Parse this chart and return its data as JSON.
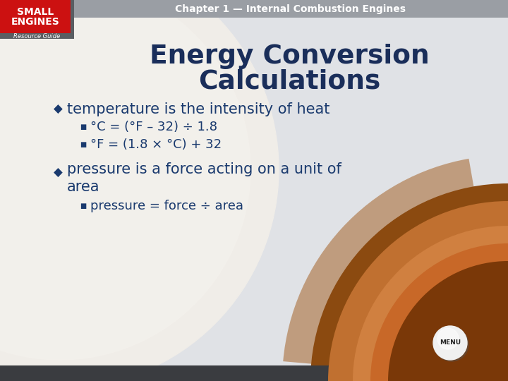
{
  "header_text": "Chapter 1 — Internal Combustion Engines",
  "title_line1": "Energy Conversion",
  "title_line2": "Calculations",
  "bullet1": "temperature is the intensity of heat",
  "sub1a": "°C = (°F – 32) ÷ 1.8",
  "sub1b": "°F = (1.8 × °C) + 32",
  "bullet2_line1": "pressure is a force acting on a unit of",
  "bullet2_line2": "area",
  "sub2a": "pressure = force ÷ area",
  "header_text_color": "#ffffff",
  "title_color": "#1a2e5a",
  "bullet_color": "#1a3a6e",
  "sub_color": "#1a3a6e",
  "red_box_color": "#cc1111",
  "slide_bg": "#e0e2e6",
  "left_band_color": "#6e7278",
  "header_band_color": "#7a7e84",
  "circle_large_color": "#f0ede8",
  "circle_outline_color": "#d8d4ce",
  "wood_dark": "#8b4a10",
  "wood_mid": "#c07030",
  "wood_light": "#d08040"
}
